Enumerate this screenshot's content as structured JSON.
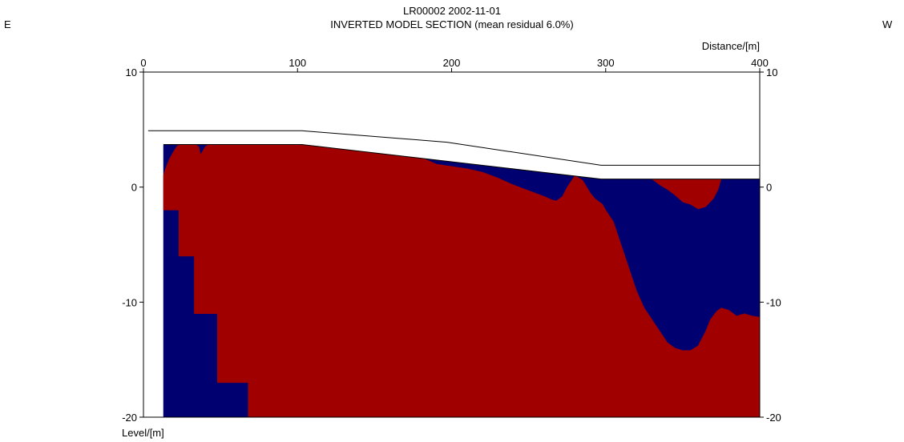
{
  "header": {
    "title": "LR00002 2002-11-01",
    "subtitle": "INVERTED MODEL SECTION (mean residual 6.0%)",
    "left_label": "E",
    "right_label": "W"
  },
  "chart_data": {
    "type": "area",
    "title": "LR00002 2002-11-01",
    "subtitle": "INVERTED MODEL SECTION (mean residual 6.0%)",
    "xlabel": "Distance/[m]",
    "ylabel": "Level/[m]",
    "xlim": [
      0,
      400
    ],
    "ylim": [
      -20,
      10
    ],
    "x_ticks": [
      0,
      100,
      200,
      300,
      400
    ],
    "y_ticks": [
      10,
      0,
      -10,
      -20
    ],
    "x_tick_labels": [
      "0",
      "100",
      "200",
      "300",
      "400"
    ],
    "y_tick_labels": [
      "10",
      "0",
      "-10",
      "-20"
    ],
    "x_axis_position": "top",
    "grid": false,
    "legend": "none",
    "colors": {
      "low_zone": "#000070",
      "high_zone": "#a00000",
      "line": "#000000"
    },
    "surface_line": {
      "x": [
        3,
        103,
        197,
        297,
        400
      ],
      "y": [
        4.9,
        4.9,
        3.9,
        1.9,
        1.9
      ]
    },
    "model_boundary": {
      "top": {
        "x": [
          13,
          103,
          297,
          400
        ],
        "y": [
          3.7,
          3.7,
          0.7,
          0.7
        ]
      },
      "base_steps": {
        "x": [
          13,
          23,
          23,
          33,
          33,
          48,
          48,
          68,
          68,
          400
        ],
        "y": [
          -2,
          -2,
          -6,
          -6,
          -11,
          -11,
          -17,
          -17,
          -20,
          -20
        ]
      }
    },
    "series": [
      {
        "name": "",
        "role": "low_zone_region",
        "x": [
          13,
          103,
          297,
          400,
          400,
          13
        ],
        "y": [
          3.7,
          3.7,
          0.7,
          0.7,
          -20,
          -20
        ]
      },
      {
        "name": "",
        "role": "high_zone_region",
        "x": [
          13,
          14,
          17,
          20,
          22,
          25,
          30,
          34,
          36,
          37,
          40,
          42,
          45,
          60,
          80,
          103,
          130,
          160,
          175,
          180,
          185,
          190,
          195,
          200,
          210,
          220,
          230,
          240,
          250,
          260,
          265,
          268,
          272,
          275,
          278,
          280,
          285,
          290,
          293,
          298,
          300,
          305,
          310,
          315,
          320,
          325,
          330,
          335,
          340,
          345,
          350,
          355,
          360,
          365,
          368,
          372,
          375,
          380,
          385,
          390,
          395,
          400,
          400,
          68,
          68,
          48,
          48,
          33,
          33,
          23,
          23,
          13
        ],
        "y": [
          1,
          1.5,
          2.5,
          3.2,
          3.6,
          3.7,
          3.7,
          3.7,
          3.5,
          2.8,
          3.5,
          3.7,
          3.7,
          3.7,
          3.7,
          3.7,
          3.3,
          2.9,
          2.7,
          2.6,
          2.3,
          2.0,
          1.9,
          1.8,
          1.6,
          1.3,
          0.8,
          0.2,
          -0.3,
          -0.8,
          -1.1,
          -1.2,
          -0.8,
          0,
          0.6,
          1.0,
          0.6,
          -0.5,
          -1.0,
          -1.5,
          -2.0,
          -3.0,
          -5.0,
          -7.0,
          -9.0,
          -10.5,
          -11.5,
          -12.5,
          -13.5,
          -14.0,
          -14.2,
          -14.2,
          -13.8,
          -12.5,
          -11.5,
          -10.8,
          -10.5,
          -10.7,
          -11.2,
          -11.0,
          -11.2,
          -11.3,
          -20,
          -20,
          -17,
          -17,
          -11,
          -11,
          -6,
          -6,
          -2,
          -2
        ]
      },
      {
        "name": "",
        "role": "high_zone_region",
        "x": [
          330,
          335,
          340,
          345,
          350,
          355,
          360,
          365,
          370,
          373,
          375
        ],
        "y": [
          0.7,
          0.2,
          -0.2,
          -0.7,
          -1.3,
          -1.5,
          -1.9,
          -1.7,
          -1.0,
          -0.2,
          0.7
        ]
      }
    ]
  }
}
